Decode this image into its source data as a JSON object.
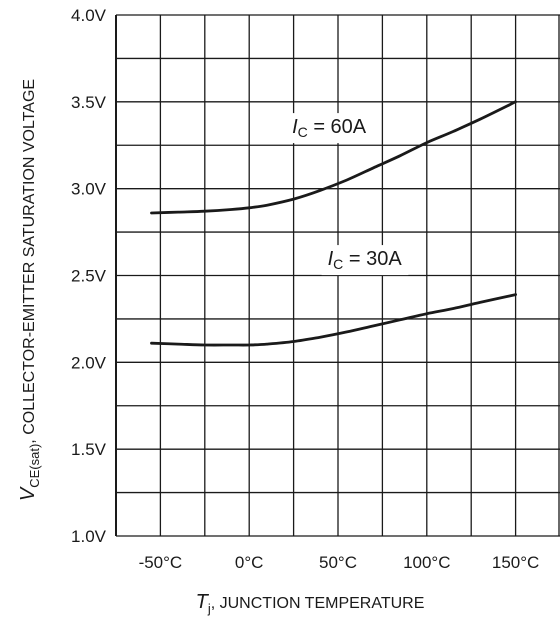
{
  "chart_data": {
    "type": "line",
    "xlabel": {
      "symbol": "T",
      "subscript": "j",
      "rest": ", JUNCTION TEMPERATURE"
    },
    "ylabel": {
      "symbol": "V",
      "subscript": "CE(sat)",
      "rest": ", COLLECTOR-EMITTER SATURATION VOLTAGE"
    },
    "xlim": [
      -75,
      175
    ],
    "ylim": [
      1.0,
      4.0
    ],
    "x_ticks": [
      {
        "value": -50,
        "label": "-50°C"
      },
      {
        "value": 0,
        "label": "0°C"
      },
      {
        "value": 50,
        "label": "50°C"
      },
      {
        "value": 100,
        "label": "100°C"
      },
      {
        "value": 150,
        "label": "150°C"
      }
    ],
    "y_ticks": [
      {
        "value": 1.0,
        "label": "1.0V"
      },
      {
        "value": 1.5,
        "label": "1.5V"
      },
      {
        "value": 2.0,
        "label": "2.0V"
      },
      {
        "value": 2.5,
        "label": "2.5V"
      },
      {
        "value": 3.0,
        "label": "3.0V"
      },
      {
        "value": 3.5,
        "label": "3.5V"
      },
      {
        "value": 4.0,
        "label": "4.0V"
      }
    ],
    "x_grid_step": 25,
    "y_grid_step": 0.25,
    "grid": true,
    "series": [
      {
        "name_symbol": "I",
        "name_subscript": "C",
        "name_rest": " = 60A",
        "x": [
          -55,
          -40,
          -25,
          -10,
          0,
          10,
          25,
          40,
          55,
          70,
          85,
          100,
          115,
          130,
          150
        ],
        "y": [
          2.86,
          2.865,
          2.87,
          2.88,
          2.89,
          2.905,
          2.94,
          2.99,
          3.05,
          3.12,
          3.19,
          3.265,
          3.33,
          3.4,
          3.5
        ],
        "label_at": {
          "x": 45,
          "y": 3.32
        }
      },
      {
        "name_symbol": "I",
        "name_subscript": "C",
        "name_rest": " = 30A",
        "x": [
          -55,
          -40,
          -25,
          -10,
          0,
          10,
          25,
          40,
          55,
          70,
          85,
          100,
          115,
          130,
          150
        ],
        "y": [
          2.11,
          2.105,
          2.1,
          2.1,
          2.1,
          2.105,
          2.12,
          2.145,
          2.175,
          2.21,
          2.245,
          2.28,
          2.31,
          2.345,
          2.39
        ],
        "label_at": {
          "x": 65,
          "y": 2.56
        }
      }
    ],
    "line_color": "#1a1a1a",
    "grid_color": "#1a1a1a"
  }
}
